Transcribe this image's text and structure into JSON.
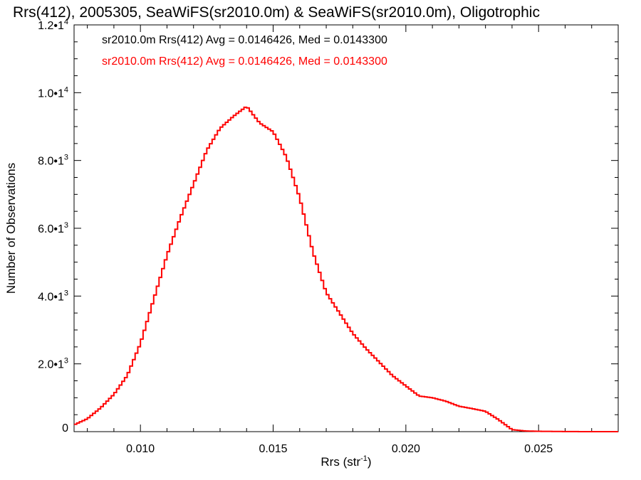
{
  "chart_data": {
    "type": "line",
    "title": "Rrs(412), 2005305, SeaWiFS(sr2010.0m) & SeaWiFS(sr2010.0m), Oligotrophic",
    "xlabel": "Rrs (str",
    "xlabel_sup": "-1",
    "xlabel_end": ")",
    "ylabel": "Number of Observations",
    "xlim": [
      0.0075,
      0.028
    ],
    "ylim": [
      0,
      12000
    ],
    "x_ticks": [
      {
        "value": 0.01,
        "label": "0.010"
      },
      {
        "value": 0.015,
        "label": "0.015"
      },
      {
        "value": 0.02,
        "label": "0.020"
      },
      {
        "value": 0.025,
        "label": "0.025"
      }
    ],
    "y_ticks": [
      {
        "value": 0,
        "mant": "0",
        "exp": ""
      },
      {
        "value": 2000,
        "mant": "2.0•1",
        "exp": "3"
      },
      {
        "value": 4000,
        "mant": "4.0•1",
        "exp": "3"
      },
      {
        "value": 6000,
        "mant": "6.0•1",
        "exp": "3"
      },
      {
        "value": 8000,
        "mant": "8.0•1",
        "exp": "3"
      },
      {
        "value": 10000,
        "mant": "1.0•1",
        "exp": "4"
      },
      {
        "value": 12000,
        "mant": "1.2•1",
        "exp": "4"
      }
    ],
    "legend": [
      {
        "text": "sr2010.0m Rrs(412) Avg = 0.0146426, Med = 0.0143300",
        "color": "#000000"
      },
      {
        "text": "sr2010.0m Rrs(412) Avg = 0.0146426, Med = 0.0143300",
        "color": "#ff0000"
      }
    ],
    "legend_position": "top-left",
    "series": [
      {
        "color": "#ff0000",
        "points": [
          [
            0.0075,
            200
          ],
          [
            0.008,
            380
          ],
          [
            0.0085,
            700
          ],
          [
            0.009,
            1100
          ],
          [
            0.0095,
            1650
          ],
          [
            0.01,
            2600
          ],
          [
            0.0105,
            3900
          ],
          [
            0.011,
            5200
          ],
          [
            0.0115,
            6300
          ],
          [
            0.012,
            7300
          ],
          [
            0.0125,
            8300
          ],
          [
            0.013,
            8950
          ],
          [
            0.0135,
            9300
          ],
          [
            0.014,
            9600
          ],
          [
            0.0145,
            9100
          ],
          [
            0.015,
            8850
          ],
          [
            0.0155,
            8100
          ],
          [
            0.016,
            6900
          ],
          [
            0.0165,
            5300
          ],
          [
            0.017,
            4100
          ],
          [
            0.0175,
            3500
          ],
          [
            0.018,
            2900
          ],
          [
            0.0185,
            2450
          ],
          [
            0.019,
            2050
          ],
          [
            0.0195,
            1650
          ],
          [
            0.02,
            1350
          ],
          [
            0.0205,
            1050
          ],
          [
            0.021,
            1000
          ],
          [
            0.0215,
            900
          ],
          [
            0.022,
            750
          ],
          [
            0.0225,
            680
          ],
          [
            0.023,
            600
          ],
          [
            0.0235,
            350
          ],
          [
            0.024,
            60
          ],
          [
            0.0245,
            20
          ],
          [
            0.025,
            10
          ],
          [
            0.026,
            3
          ],
          [
            0.027,
            0
          ],
          [
            0.028,
            0
          ]
        ]
      }
    ]
  }
}
